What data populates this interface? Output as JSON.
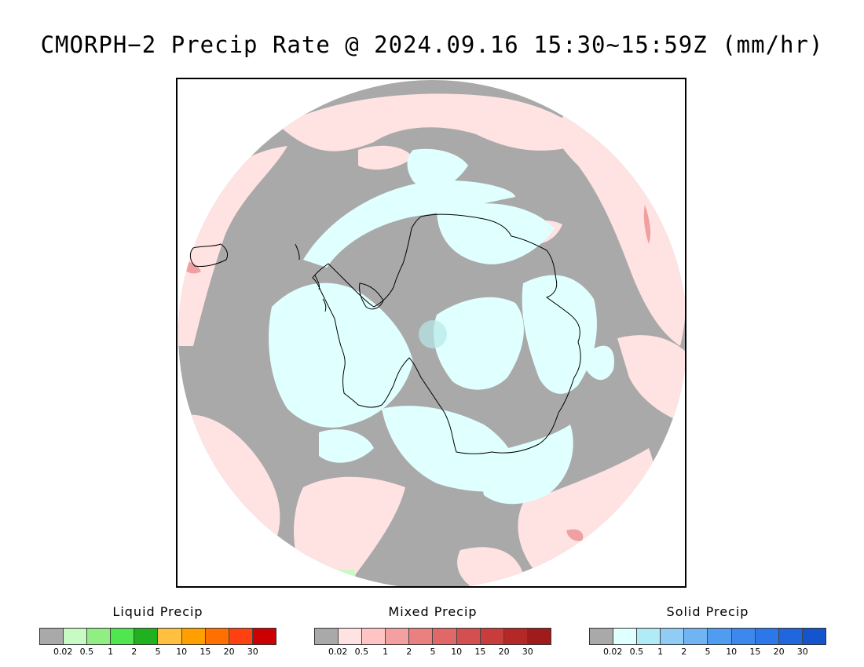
{
  "title": "CMORPH−2 Precip Rate @ 2024.09.16 15:30~15:59Z (mm/hr)",
  "colors": {
    "land_outline": "#000000",
    "frame": "#000000",
    "no_precip_gray": "#a9a9a9",
    "mixed_light": "#ffe2e2",
    "solid_light": "#e0ffff"
  },
  "legends": [
    {
      "title": "Liquid Precip",
      "colors": [
        "#a9a9a9",
        "#c8fbc4",
        "#90ee82",
        "#50e650",
        "#20b020",
        "#ffc040",
        "#ffa000",
        "#ff7000",
        "#ff4010",
        "#cc0000"
      ],
      "ticks": [
        "0.02",
        "0.5",
        "1",
        "2",
        "5",
        "10",
        "15",
        "20",
        "30"
      ]
    },
    {
      "title": "Mixed Precip",
      "colors": [
        "#a9a9a9",
        "#ffe2e2",
        "#ffc4c4",
        "#f4a0a0",
        "#ea8080",
        "#e06868",
        "#d45050",
        "#c83c3c",
        "#b42828",
        "#a01c1c"
      ],
      "ticks": [
        "0.02",
        "0.5",
        "1",
        "2",
        "5",
        "10",
        "15",
        "20",
        "30"
      ]
    },
    {
      "title": "Solid Precip",
      "colors": [
        "#a9a9a9",
        "#e0ffff",
        "#b0ecf8",
        "#90ccf6",
        "#70b4f4",
        "#509cf0",
        "#3c88ec",
        "#2c78e8",
        "#2066dc",
        "#1454cc"
      ],
      "ticks": [
        "0.02",
        "0.5",
        "1",
        "2",
        "5",
        "10",
        "15",
        "20",
        "30"
      ]
    }
  ]
}
